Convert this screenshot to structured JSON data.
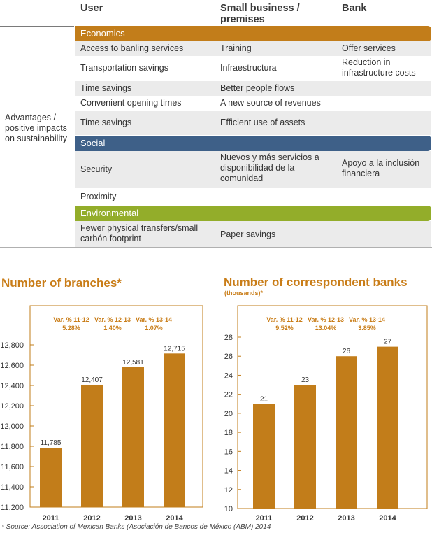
{
  "table": {
    "headers": {
      "user": "User",
      "small_business": "Small business / premises",
      "bank": "Bank"
    },
    "row_label": "Advantages / positive impacts on sustainability",
    "categories": {
      "economics": "Economics",
      "social": "Social",
      "environmental": "Environmental"
    },
    "rows": [
      {
        "user": "Access to banling services",
        "small_business": "Training",
        "bank": "Offer services"
      },
      {
        "user": "Transportation savings",
        "small_business": "Infraestructura",
        "bank": "Reduction in infrastructure costs"
      },
      {
        "user": "Time savings",
        "small_business": "Better people flows",
        "bank": ""
      },
      {
        "user": "Convenient opening times",
        "small_business": "A new source of revenues",
        "bank": ""
      },
      {
        "user": "Time savings",
        "small_business": "Efficient use of assets",
        "bank": ""
      },
      {
        "user": "Security",
        "small_business": "Nuevos y más servicios a disponibilidad de la comunidad",
        "bank": "Apoyo a la inclusión financiera"
      },
      {
        "user": "Proximity",
        "small_business": "",
        "bank": ""
      },
      {
        "user": "Fewer physical transfers/small carbón footprint",
        "small_business": "Paper savings",
        "bank": ""
      }
    ],
    "colors": {
      "economics": "#c27d1a",
      "social": "#3e6088",
      "environmental": "#93ad2a",
      "shade": "#ebebeb"
    }
  },
  "footnote": "* Source: Association of Mexican Banks (Asociación de Bancos de México (ABM) 2014",
  "chart_data": [
    {
      "type": "bar",
      "title": "Number of branches*",
      "categories": [
        "2011",
        "2012",
        "2013",
        "2014"
      ],
      "values": [
        11785,
        12407,
        12581,
        12715
      ],
      "value_labels": [
        "11,785",
        "12,407",
        "12,581",
        "12,715"
      ],
      "ylim": [
        11200,
        12800
      ],
      "yticks": [
        "11,200",
        "11,400",
        "11,600",
        "11,800",
        "12,000",
        "12,200",
        "12,400",
        "12,600",
        "12,800"
      ],
      "variations": [
        {
          "label": "Var. % 11-12",
          "value": "5.28%"
        },
        {
          "label": "Var. % 12-13",
          "value": "1.40%"
        },
        {
          "label": "Var. % 13-14",
          "value": "1.07%"
        }
      ],
      "bar_color": "#c27d1a",
      "grid": false
    },
    {
      "type": "bar",
      "title": "Number of correspondent banks",
      "subtitle": "(thousands)*",
      "categories": [
        "2011",
        "2012",
        "2013",
        "2014"
      ],
      "values": [
        21,
        23,
        26,
        27
      ],
      "value_labels": [
        "21",
        "23",
        "26",
        "27"
      ],
      "ylim": [
        10,
        28
      ],
      "yticks": [
        "10",
        "12",
        "14",
        "16",
        "18",
        "20",
        "22",
        "24",
        "26",
        "28"
      ],
      "variations": [
        {
          "label": "Var. % 11-12",
          "value": "9.52%"
        },
        {
          "label": "Var. % 12-13",
          "value": "13.04%"
        },
        {
          "label": "Var. % 13-14",
          "value": "3.85%"
        }
      ],
      "bar_color": "#c27d1a",
      "grid": false
    }
  ]
}
